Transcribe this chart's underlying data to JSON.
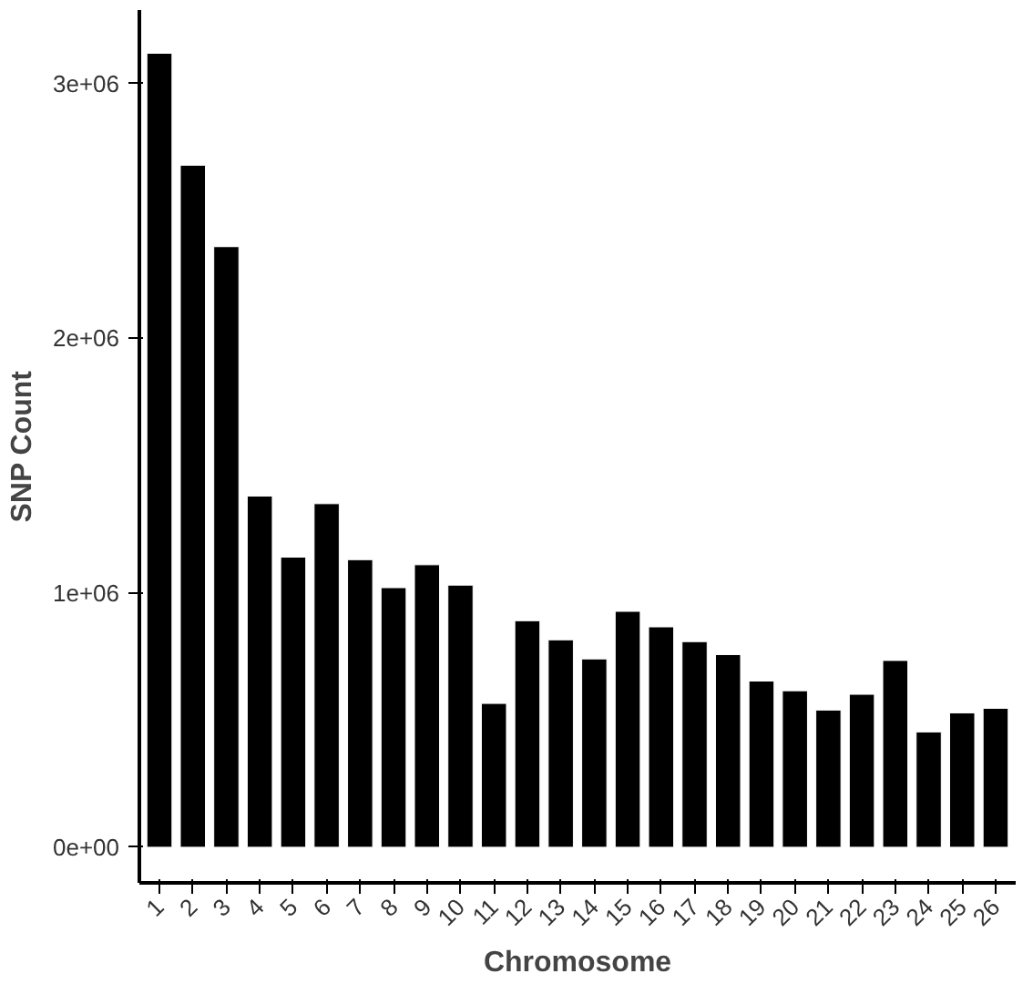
{
  "chart_data": {
    "type": "bar",
    "xlabel": "Chromosome",
    "ylabel": "SNP Count",
    "categories": [
      "1",
      "2",
      "3",
      "4",
      "5",
      "6",
      "7",
      "8",
      "9",
      "10",
      "11",
      "12",
      "13",
      "14",
      "15",
      "16",
      "17",
      "18",
      "19",
      "20",
      "21",
      "22",
      "23",
      "24",
      "25",
      "26"
    ],
    "values": [
      3120000,
      2680000,
      2360000,
      1380000,
      1140000,
      1350000,
      1130000,
      1020000,
      1110000,
      1030000,
      565000,
      890000,
      815000,
      740000,
      927000,
      866000,
      808000,
      757000,
      653000,
      615000,
      539000,
      601000,
      734000,
      453000,
      528000,
      546000
    ],
    "color": "#000000",
    "ylim": [
      -140000,
      3290000
    ],
    "yticks": [
      {
        "value": 0,
        "label": "0e+00"
      },
      {
        "value": 1000000,
        "label": "1e+06"
      },
      {
        "value": 2000000,
        "label": "2e+06"
      },
      {
        "value": 3000000,
        "label": "3e+06"
      }
    ],
    "grid": false
  }
}
